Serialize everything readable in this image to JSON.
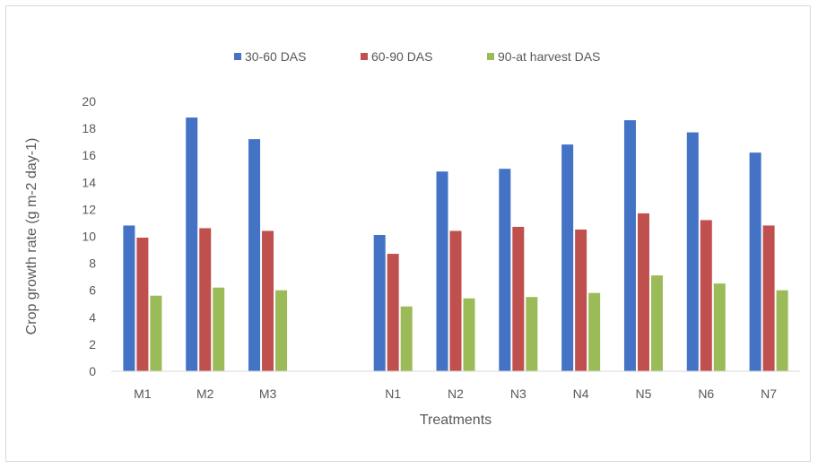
{
  "chart_data": {
    "type": "bar",
    "title": "",
    "xlabel": "Treatments",
    "ylabel": "Crop growth rate (g m-2 day-1)",
    "ylim": [
      0,
      20
    ],
    "yticks": [
      0,
      2,
      4,
      6,
      8,
      10,
      12,
      14,
      16,
      18,
      20
    ],
    "grid": false,
    "legend_position": "top-center",
    "categories": [
      "M1",
      "M2",
      "M3",
      "",
      "N1",
      "N2",
      "N3",
      "N4",
      "N5",
      "N6",
      "N7"
    ],
    "series": [
      {
        "name": "30-60 DAS",
        "color": "#4472c4",
        "values": [
          10.8,
          18.8,
          17.2,
          null,
          10.1,
          14.8,
          15.0,
          16.8,
          18.6,
          17.7,
          16.2
        ]
      },
      {
        "name": "60-90 DAS",
        "color": "#c0504d",
        "values": [
          9.9,
          10.6,
          10.4,
          null,
          8.7,
          10.4,
          10.7,
          10.5,
          11.7,
          11.2,
          10.8
        ]
      },
      {
        "name": "90-at harvest DAS",
        "color": "#9bbb59",
        "values": [
          5.6,
          6.2,
          6.0,
          null,
          4.8,
          5.4,
          5.5,
          5.8,
          7.1,
          6.5,
          6.0
        ]
      }
    ]
  }
}
